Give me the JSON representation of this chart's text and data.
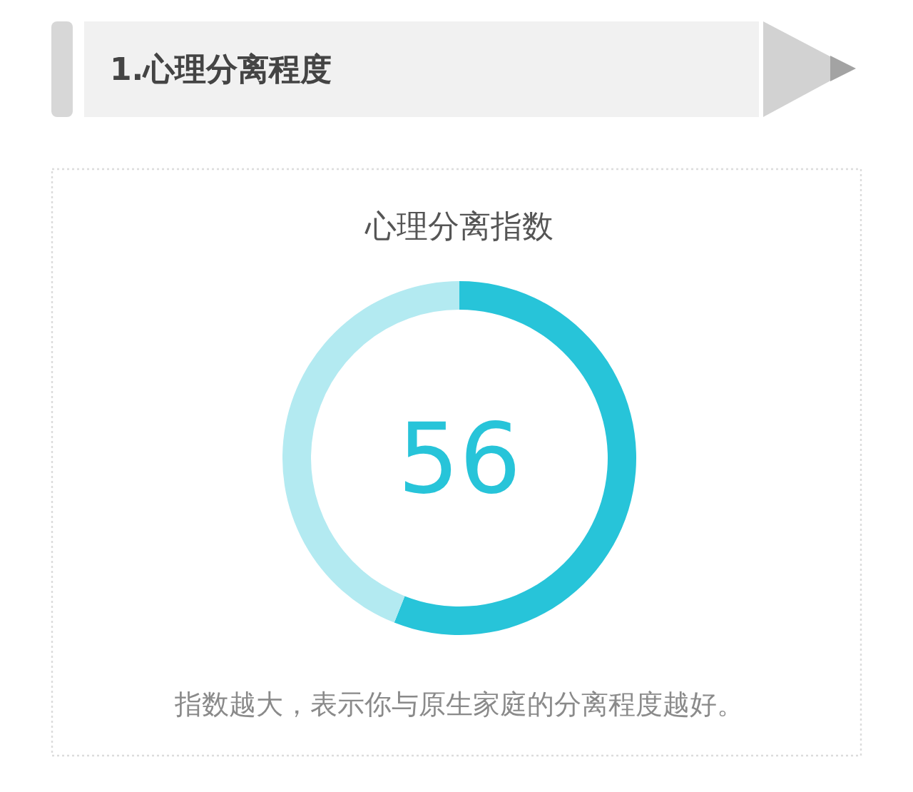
{
  "chart_data": {
    "type": "donut",
    "title": "1.心理分离程度",
    "subtitle": "心理分离指数",
    "categories": [
      null,
      null
    ],
    "values": [
      56,
      44
    ],
    "colors": [
      "#27c4d9",
      "#b3eaf1"
    ],
    "value_labels": [
      "56",
      null
    ],
    "annotations": [
      "指数越大，表示你与原生家庭的分离程度越好。"
    ]
  }
}
